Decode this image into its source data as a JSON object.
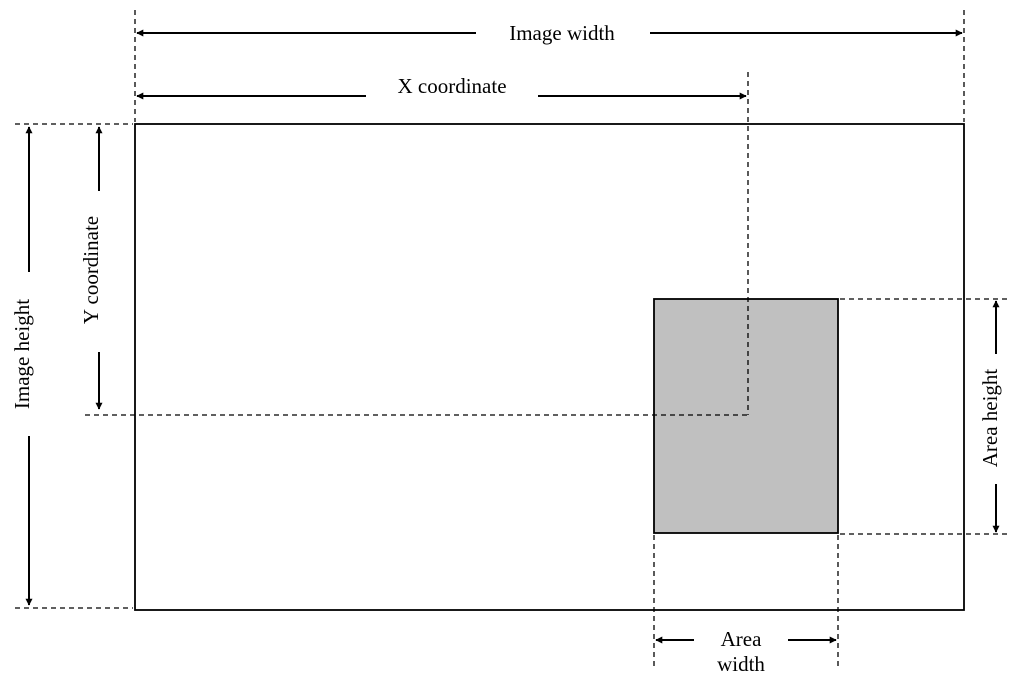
{
  "labels": {
    "image_width": "Image width",
    "x_coordinate": "X coordinate",
    "image_height": "Image height",
    "y_coordinate": "Y coordinate",
    "area_height": "Area height",
    "area_width_line1": "Area",
    "area_width_line2": "width"
  },
  "colors": {
    "line": "#000000",
    "area_fill": "#c0c0c0",
    "background": "#ffffff"
  }
}
